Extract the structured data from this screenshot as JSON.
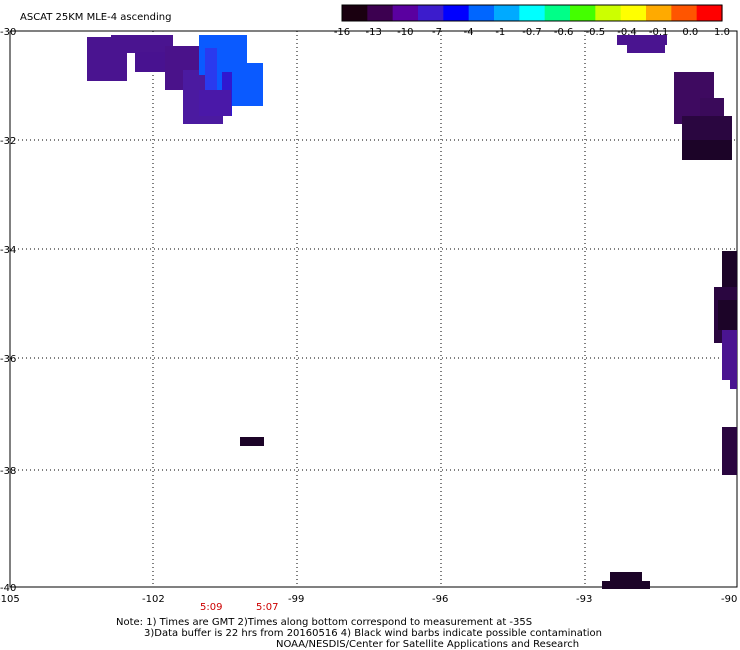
{
  "title": "ASCAT 25KM MLE-4 ascending",
  "colorbar": {
    "labels": [
      "-16",
      "-13",
      "-10",
      "-7",
      "-4",
      "-1",
      "-0.7",
      "-0.6",
      "-0.5",
      "-0.4",
      "-0.1",
      "0.0",
      "1.0"
    ],
    "colors": [
      "#1a0010",
      "#3c0050",
      "#5a00a0",
      "#3c1ccc",
      "#0000ff",
      "#0066ff",
      "#00aaff",
      "#00ffff",
      "#00ff88",
      "#44ff00",
      "#ccff00",
      "#ffff00",
      "#ffaa00",
      "#ff5500",
      "#ff0000"
    ]
  },
  "axes": {
    "lat_labels": [
      "-30",
      "-32",
      "-34",
      "-36",
      "-38",
      "-40"
    ],
    "lon_labels": [
      "-105",
      "-102",
      "-99",
      "-96",
      "-93",
      "-90"
    ]
  },
  "times": [
    "5:09",
    "5:07"
  ],
  "notes": {
    "line1": "Note: 1) Times are GMT 2)Times along bottom correspond to measurement at -35S",
    "line2": "3)Data buffer is 22 hrs from 20160516 4) Black wind barbs indicate possible contamination",
    "line3": "NOAA/NESDIS/Center for Satellite Applications and Research"
  },
  "palette": {
    "purple": "#4a1490",
    "purple_mid": "#4b1aa0",
    "dark_purple": "#3a0a5a",
    "darkest": "#1c0428",
    "blue": "#0a5aff"
  }
}
